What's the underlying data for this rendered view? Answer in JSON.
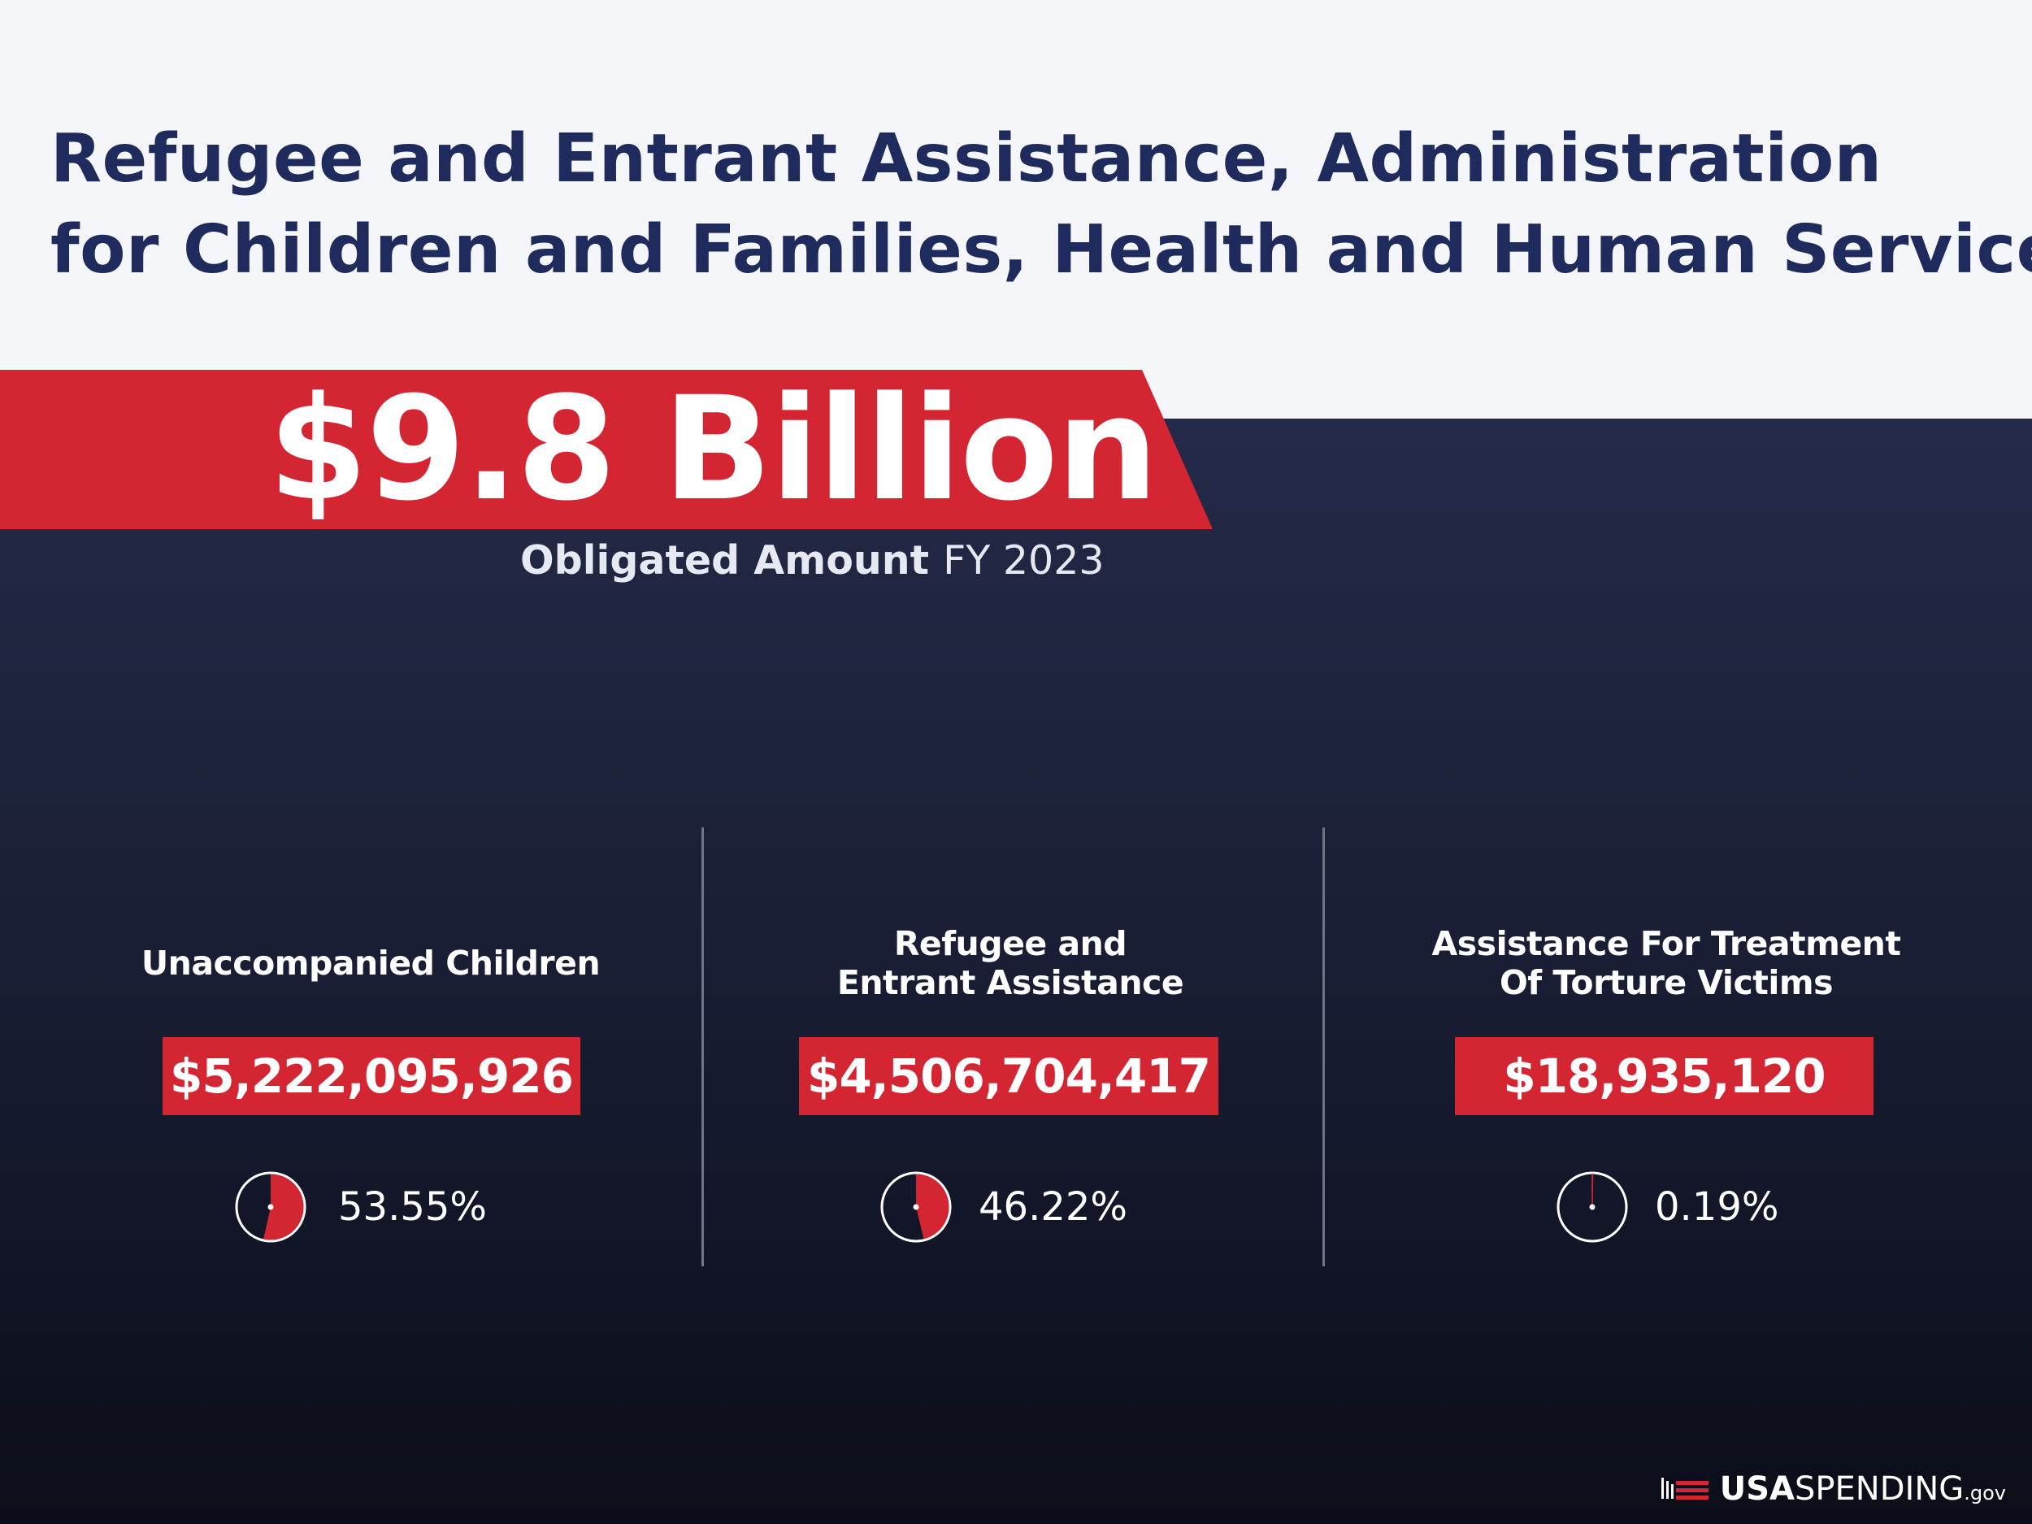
{
  "title": {
    "line1": "Refugee and Entrant Assistance, Administration",
    "line2": "for Children and Families, Health and Human Services"
  },
  "headline": {
    "amount": "$9.8 Billion",
    "caption_main": "Obligated Amount",
    "caption_year": "FY 2023"
  },
  "categories": [
    {
      "label": "Unaccompanied Children",
      "amount": "$5,222,095,926",
      "percent_text": "53.55%",
      "percent_value": 53.55
    },
    {
      "label": "Refugee and Entrant Assistance",
      "amount": "$4,506,704,417",
      "percent_text": "46.22%",
      "percent_value": 46.22
    },
    {
      "label": "Assistance For Treatment Of Torture Victims",
      "amount": "$18,935,120",
      "percent_text": "0.19%",
      "percent_value": 0.19
    }
  ],
  "logo": {
    "bold": "USA",
    "regular": "SPENDING",
    "suffix": ".gov"
  },
  "colors": {
    "navy_text": "#1f2b5c",
    "accent_red": "#d42533",
    "dark_bg": "#1a1f36",
    "light_bg": "#f4f6fa"
  }
}
